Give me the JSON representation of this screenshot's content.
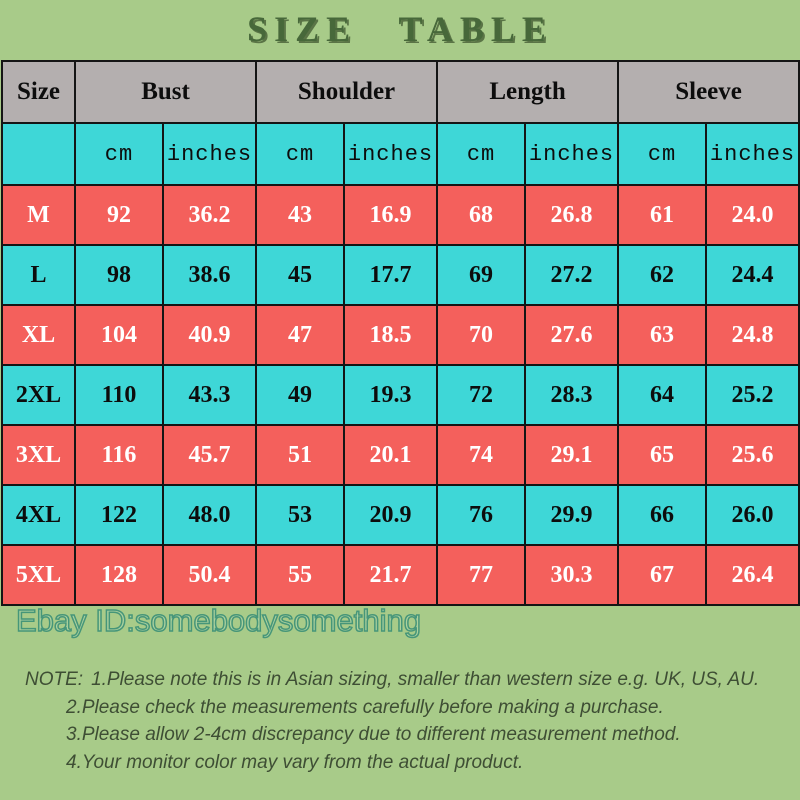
{
  "title": "SIZE TABLE",
  "watermark": "Ebay ID:somebodysomething",
  "chart_data": {
    "type": "table",
    "title": "SIZE TABLE",
    "column_groups": [
      "Size",
      "Bust",
      "Shoulder",
      "Length",
      "Sleeve"
    ],
    "unit_headers": [
      "cm",
      "inches",
      "cm",
      "inches",
      "cm",
      "inches",
      "cm",
      "inches"
    ],
    "rows": [
      {
        "size": "M",
        "values": [
          "92",
          "36.2",
          "43",
          "16.9",
          "68",
          "26.8",
          "61",
          "24.0"
        ]
      },
      {
        "size": "L",
        "values": [
          "98",
          "38.6",
          "45",
          "17.7",
          "69",
          "27.2",
          "62",
          "24.4"
        ]
      },
      {
        "size": "XL",
        "values": [
          "104",
          "40.9",
          "47",
          "18.5",
          "70",
          "27.6",
          "63",
          "24.8"
        ]
      },
      {
        "size": "2XL",
        "values": [
          "110",
          "43.3",
          "49",
          "19.3",
          "72",
          "28.3",
          "64",
          "25.2"
        ]
      },
      {
        "size": "3XL",
        "values": [
          "116",
          "45.7",
          "51",
          "20.1",
          "74",
          "29.1",
          "65",
          "25.6"
        ]
      },
      {
        "size": "4XL",
        "values": [
          "122",
          "48.0",
          "53",
          "20.9",
          "76",
          "29.9",
          "66",
          "26.0"
        ]
      },
      {
        "size": "5XL",
        "values": [
          "128",
          "50.4",
          "55",
          "21.7",
          "77",
          "30.3",
          "67",
          "26.4"
        ]
      }
    ]
  },
  "notes": {
    "label": "NOTE:",
    "items": [
      "1.Please note this is in Asian sizing, smaller than western size e.g. UK, US, AU.",
      "2.Please check the measurements carefully before making a purchase.",
      "3.Please allow 2-4cm discrepancy due to different measurement method.",
      "4.Your monitor color may vary from the actual product."
    ]
  },
  "colors": {
    "background_green": "#a8cb89",
    "header_gray": "#b4afaf",
    "row_red": "#f4605c",
    "row_cyan": "#3ed7d7",
    "border_black": "#151515",
    "title_green": "#47683a",
    "note_text": "#3e4e34",
    "watermark_teal": "#2d8773",
    "red_row_text": "#ffffff",
    "cyan_row_text": "#0d0d0d"
  }
}
